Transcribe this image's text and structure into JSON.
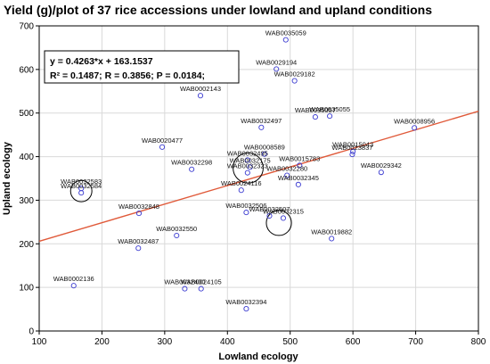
{
  "chart_data": {
    "type": "scatter",
    "title": "Yield (g)/plot of 37 rice accessions under lowland and upland conditions",
    "xlabel": "Lowland ecology",
    "ylabel": "Upland ecology",
    "xlim": [
      100,
      800
    ],
    "ylim": [
      0,
      700
    ],
    "xticks": [
      100,
      200,
      300,
      400,
      500,
      600,
      700,
      800
    ],
    "yticks": [
      0,
      100,
      200,
      300,
      400,
      500,
      600,
      700
    ],
    "grid": true,
    "equation_line1": "y =  0.4263*x + 163.1537",
    "equation_line2": "R² = 0.1487;  R = 0.3856; P = 0.0184;",
    "regression": {
      "slope": 0.4263,
      "intercept": 163.1537
    },
    "colors": {
      "points": "#3a3ad0",
      "line": "#e05a3a",
      "grid": "#d9d9d9"
    },
    "points": [
      {
        "x": 493,
        "y": 668,
        "label": "WAB0035059"
      },
      {
        "x": 478,
        "y": 601,
        "label": "WAB0029194"
      },
      {
        "x": 507,
        "y": 574,
        "label": "WAB0029182"
      },
      {
        "x": 357,
        "y": 540,
        "label": "WAB0002143"
      },
      {
        "x": 540,
        "y": 491,
        "label": "WAB0035057"
      },
      {
        "x": 563,
        "y": 493,
        "label": "WAB0035055"
      },
      {
        "x": 454,
        "y": 467,
        "label": "WAB0032497"
      },
      {
        "x": 698,
        "y": 466,
        "label": "WAB0008956"
      },
      {
        "x": 296,
        "y": 422,
        "label": "WAB0020477"
      },
      {
        "x": 459,
        "y": 406,
        "label": "WAB0008589"
      },
      {
        "x": 600,
        "y": 412,
        "label": "WAB0015043"
      },
      {
        "x": 599,
        "y": 405,
        "label": "WAB0023837"
      },
      {
        "x": 343,
        "y": 371,
        "label": "WAB0032298"
      },
      {
        "x": 432,
        "y": 392,
        "label": "WAB0032495"
      },
      {
        "x": 436,
        "y": 376,
        "label": "WAB0032175"
      },
      {
        "x": 432,
        "y": 363,
        "label": "WAB0032323"
      },
      {
        "x": 515,
        "y": 380,
        "label": "WAB0015783"
      },
      {
        "x": 645,
        "y": 364,
        "label": "WAB0029342"
      },
      {
        "x": 495,
        "y": 357,
        "label": "WAB0032280"
      },
      {
        "x": 513,
        "y": 336,
        "label": "WAB0032345"
      },
      {
        "x": 422,
        "y": 323,
        "label": "WAB0024116"
      },
      {
        "x": 167,
        "y": 327,
        "label": "WAB0032583"
      },
      {
        "x": 167,
        "y": 317,
        "label": "WAB0032584"
      },
      {
        "x": 259,
        "y": 270,
        "label": "WAB0032848"
      },
      {
        "x": 430,
        "y": 272,
        "label": "WAB0032506"
      },
      {
        "x": 467,
        "y": 264,
        "label": "WAB0032507"
      },
      {
        "x": 489,
        "y": 259,
        "label": "WAB0032315"
      },
      {
        "x": 319,
        "y": 219,
        "label": "WAB0032550"
      },
      {
        "x": 566,
        "y": 212,
        "label": "WAB0019882"
      },
      {
        "x": 258,
        "y": 190,
        "label": "WAB0032487"
      },
      {
        "x": 155,
        "y": 104,
        "label": "WAB0002136"
      },
      {
        "x": 332,
        "y": 97,
        "label": "WAB0032400"
      },
      {
        "x": 358,
        "y": 97,
        "label": "WAB0024105"
      },
      {
        "x": 430,
        "y": 51,
        "label": "WAB0032394"
      }
    ],
    "highlight_circles": [
      {
        "x": 167,
        "y": 321,
        "r_data_x": 17
      },
      {
        "x": 433,
        "y": 374,
        "r_data_x": 24
      },
      {
        "x": 482,
        "y": 248,
        "r_data_x": 20
      }
    ]
  }
}
